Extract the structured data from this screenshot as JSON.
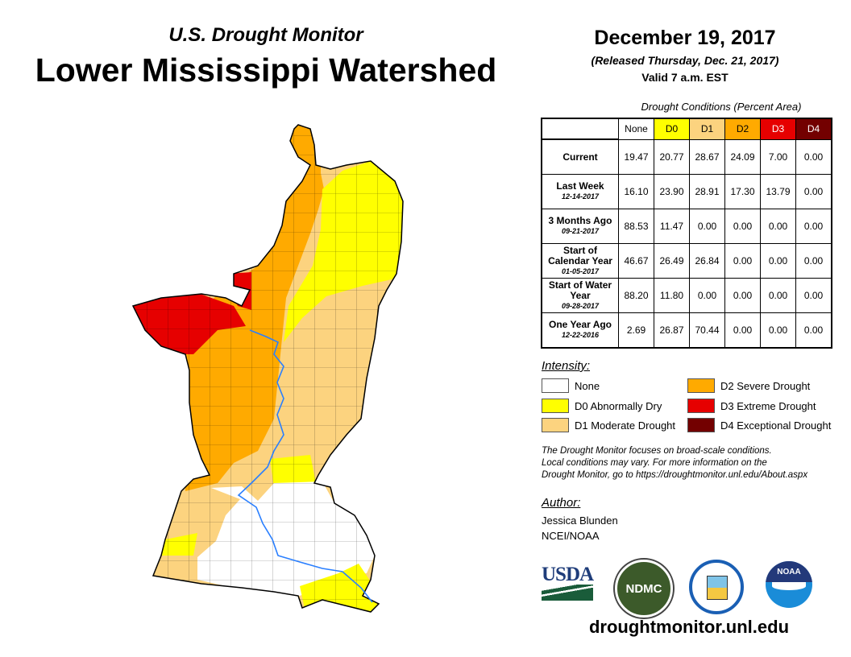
{
  "header": {
    "supertitle": "U.S. Drought Monitor",
    "title": "Lower Mississippi Watershed",
    "date": "December 19, 2017",
    "released": "(Released Thursday, Dec. 21, 2017)",
    "valid": "Valid 7 a.m. EST"
  },
  "table": {
    "caption": "Drought Conditions (Percent Area)",
    "columns": [
      "None",
      "D0",
      "D1",
      "D2",
      "D3",
      "D4"
    ],
    "rows": [
      {
        "label": "Current",
        "date": "",
        "values": [
          "19.47",
          "20.77",
          "28.67",
          "24.09",
          "7.00",
          "0.00"
        ]
      },
      {
        "label": "Last Week",
        "date": "12-14-2017",
        "values": [
          "16.10",
          "23.90",
          "28.91",
          "17.30",
          "13.79",
          "0.00"
        ]
      },
      {
        "label": "3 Months Ago",
        "date": "09-21-2017",
        "values": [
          "88.53",
          "11.47",
          "0.00",
          "0.00",
          "0.00",
          "0.00"
        ]
      },
      {
        "label": "Start of Calendar Year",
        "date": "01-05-2017",
        "values": [
          "46.67",
          "26.49",
          "26.84",
          "0.00",
          "0.00",
          "0.00"
        ]
      },
      {
        "label": "Start of Water Year",
        "date": "09-28-2017",
        "values": [
          "88.20",
          "11.80",
          "0.00",
          "0.00",
          "0.00",
          "0.00"
        ]
      },
      {
        "label": "One Year Ago",
        "date": "12-22-2016",
        "values": [
          "2.69",
          "26.87",
          "70.44",
          "0.00",
          "0.00",
          "0.00"
        ]
      }
    ]
  },
  "legend": {
    "title": "Intensity:",
    "items": [
      {
        "label": "None",
        "color": "#ffffff"
      },
      {
        "label": "D0 Abnormally Dry",
        "color": "#ffff00"
      },
      {
        "label": "D1 Moderate Drought",
        "color": "#fcd37f"
      },
      {
        "label": "D2 Severe Drought",
        "color": "#ffaa00"
      },
      {
        "label": "D3 Extreme Drought",
        "color": "#e60000"
      },
      {
        "label": "D4 Exceptional Drought",
        "color": "#730000"
      }
    ]
  },
  "note": [
    "The Drought Monitor focuses on broad-scale conditions.",
    "Local conditions may vary. For more information on the",
    "Drought Monitor, go to https://droughtmonitor.unl.edu/About.aspx"
  ],
  "author": {
    "heading": "Author:",
    "name": "Jessica Blunden",
    "org": "NCEI/NOAA"
  },
  "logos": {
    "usda": "USDA",
    "ndmc": "NDMC",
    "noaa": "NOAA"
  },
  "website": "droughtmonitor.unl.edu"
}
